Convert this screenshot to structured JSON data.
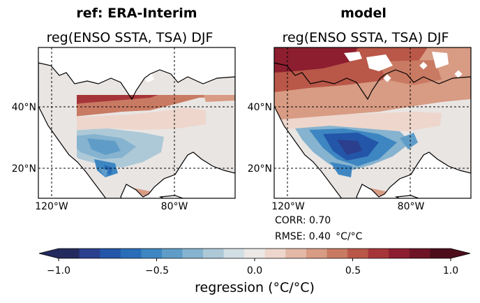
{
  "panels": [
    {
      "title": "ref: ERA-Interim",
      "subtitle": "reg(ENSO SSTA, TSA) DJF",
      "lat_ticks": [
        "40°N",
        "20°N"
      ],
      "lon_ticks": [
        "120°W",
        "80°W"
      ]
    },
    {
      "title": "model",
      "subtitle": "reg(ENSO SSTA, TSA) DJF",
      "lat_ticks": [
        "40°N",
        "20°N"
      ],
      "lon_ticks": [
        "120°W",
        "80°W"
      ],
      "stats": {
        "corr": "CORR: 0.70",
        "rmse": "RMSE: 0.40  °C/°C"
      }
    }
  ],
  "colorbar": {
    "label": "regression (°C/°C)",
    "ticks": [
      "−1.0",
      "−0.5",
      "0.0",
      "0.5",
      "1.0"
    ],
    "colors": [
      "#232b5e",
      "#2b3f8e",
      "#2356a8",
      "#2a6db8",
      "#3d86c2",
      "#5f9dc8",
      "#86b3cf",
      "#adc9d8",
      "#d1dfe4",
      "#ebe8e6",
      "#eed6cc",
      "#e3b8a6",
      "#d89b84",
      "#c97a62",
      "#b95748",
      "#a6353a",
      "#8c1e2f",
      "#6e1426",
      "#4d0d1b"
    ]
  }
}
